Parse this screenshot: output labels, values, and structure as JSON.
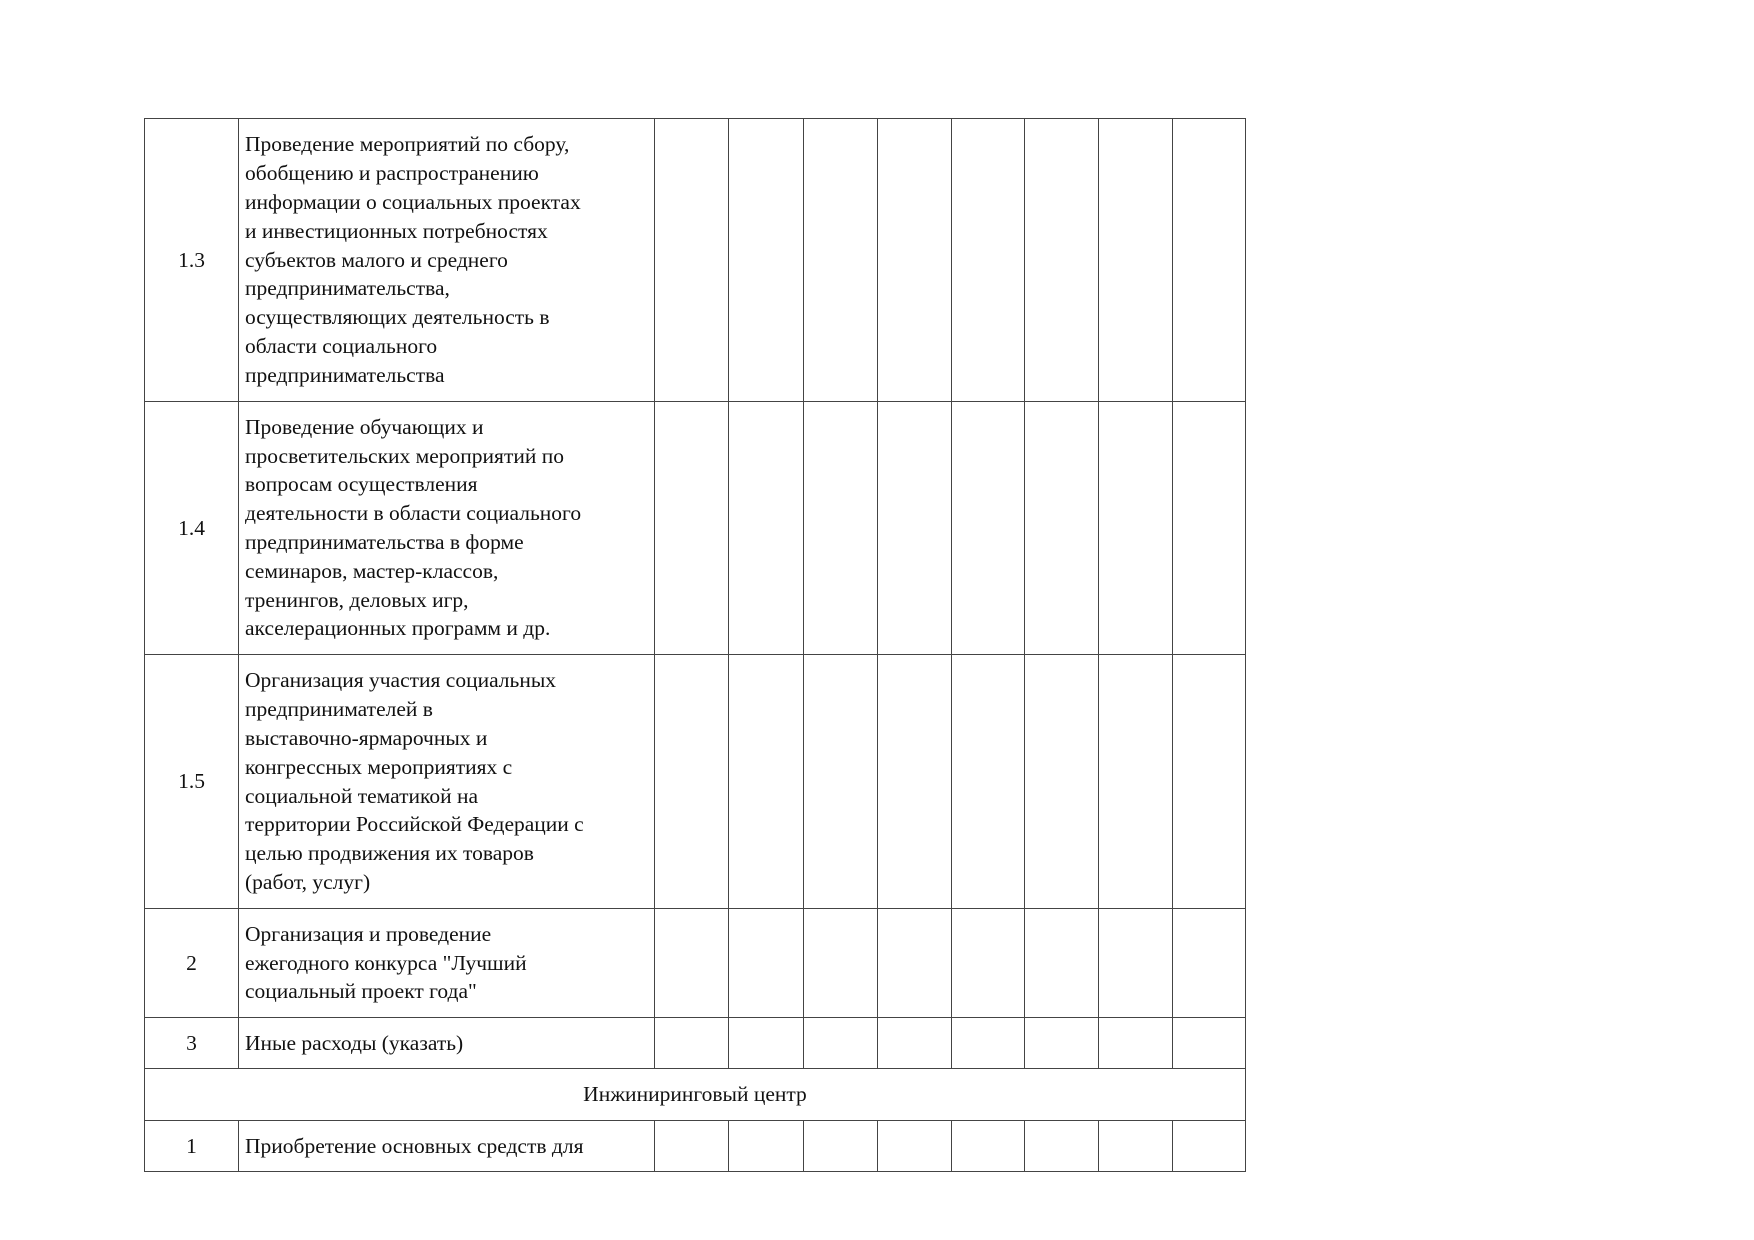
{
  "rows": [
    {
      "num": "1.3",
      "text": "Проведение мероприятий по сбору,\nобобщению и распространению\nинформации о социальных проектах\nи инвестиционных потребностях\nсубъектов малого и среднего\nпредпринимательства,\nосуществляющих деятельность в\nобласти социального\nпредпринимательства"
    },
    {
      "num": "1.4",
      "text": "Проведение обучающих и\nпросветительских мероприятий по\nвопросам осуществления\nдеятельности в области социального\nпредпринимательства в форме\nсеминаров, мастер-классов,\nтренингов, деловых игр,\nакселерационных программ и др."
    },
    {
      "num": "1.5",
      "text": "Организация участия социальных\nпредпринимателей в\nвыставочно-ярмарочных и\nконгрессных мероприятиях с\nсоциальной тематикой на\nтерритории Российской Федерации с\nцелью продвижения их товаров\n(работ, услуг)"
    },
    {
      "num": "2",
      "text": "Организация и проведение\nежегодного конкурса \"Лучший\nсоциальный проект года\""
    },
    {
      "num": "3",
      "text": "Иные расходы (указать)"
    }
  ],
  "section": "Инжиниринговый центр",
  "last_row": {
    "num": "1",
    "text": "Приобретение основных средств для"
  }
}
